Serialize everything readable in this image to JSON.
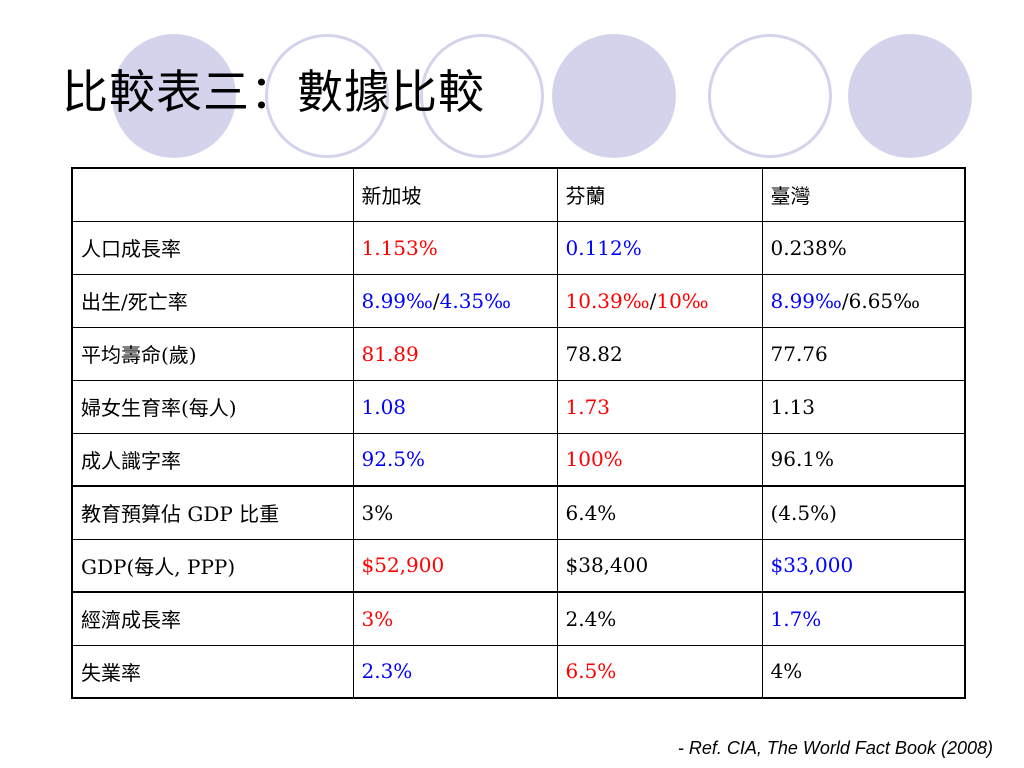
{
  "slide": {
    "title": "比較表三：數據比較",
    "reference": "- Ref. CIA, The World Fact Book (2008)"
  },
  "colors": {
    "red": "#ff0000",
    "blue": "#0000ff",
    "black": "#000000",
    "circle": "#d3d3ec"
  },
  "table": {
    "headers": [
      "",
      "新加坡",
      "芬蘭",
      "臺灣"
    ],
    "rows": [
      {
        "label": "人口成長率",
        "cells": [
          [
            {
              "t": "1.153%",
              "c": "red"
            }
          ],
          [
            {
              "t": "0.112%",
              "c": "blue"
            }
          ],
          [
            {
              "t": "0.238%",
              "c": "black"
            }
          ]
        ]
      },
      {
        "label": "出生/死亡率",
        "cells": [
          [
            {
              "t": "8.99‰",
              "c": "blue"
            },
            {
              "t": "/",
              "c": "black"
            },
            {
              "t": "4.35‰",
              "c": "blue"
            }
          ],
          [
            {
              "t": "10.39‰",
              "c": "red"
            },
            {
              "t": "/",
              "c": "black"
            },
            {
              "t": "10‰",
              "c": "red"
            }
          ],
          [
            {
              "t": "8.99‰",
              "c": "blue"
            },
            {
              "t": "/6.65‰",
              "c": "black"
            }
          ]
        ]
      },
      {
        "label": "平均壽命(歲)",
        "cells": [
          [
            {
              "t": "81.89",
              "c": "red"
            }
          ],
          [
            {
              "t": "78.82",
              "c": "black"
            }
          ],
          [
            {
              "t": "77.76",
              "c": "black"
            }
          ]
        ]
      },
      {
        "label": "婦女生育率(每人)",
        "cells": [
          [
            {
              "t": "1.08",
              "c": "blue"
            }
          ],
          [
            {
              "t": "1.73",
              "c": "red"
            }
          ],
          [
            {
              "t": "1.13",
              "c": "black"
            }
          ]
        ]
      },
      {
        "label": "成人識字率",
        "cells": [
          [
            {
              "t": "92.5%",
              "c": "blue"
            }
          ],
          [
            {
              "t": "100%",
              "c": "red"
            }
          ],
          [
            {
              "t": "96.1%",
              "c": "black"
            }
          ]
        ]
      },
      {
        "label": "教育預算佔 GDP 比重",
        "cells": [
          [
            {
              "t": "3%",
              "c": "black"
            }
          ],
          [
            {
              "t": "6.4%",
              "c": "black"
            }
          ],
          [
            {
              "t": "(4.5%)",
              "c": "black"
            }
          ]
        ]
      },
      {
        "label": "GDP(每人, PPP)",
        "cells": [
          [
            {
              "t": "$52,900",
              "c": "red"
            }
          ],
          [
            {
              "t": "$38,400",
              "c": "black"
            }
          ],
          [
            {
              "t": "$33,000",
              "c": "blue"
            }
          ]
        ]
      },
      {
        "label": "經濟成長率",
        "cells": [
          [
            {
              "t": "3%",
              "c": "red"
            }
          ],
          [
            {
              "t": "2.4%",
              "c": "black"
            }
          ],
          [
            {
              "t": "1.7%",
              "c": "blue"
            }
          ]
        ]
      },
      {
        "label": "失業率",
        "cells": [
          [
            {
              "t": "2.3%",
              "c": "blue"
            }
          ],
          [
            {
              "t": "6.5%",
              "c": "red"
            }
          ],
          [
            {
              "t": "4%",
              "c": "black"
            }
          ]
        ]
      }
    ]
  }
}
